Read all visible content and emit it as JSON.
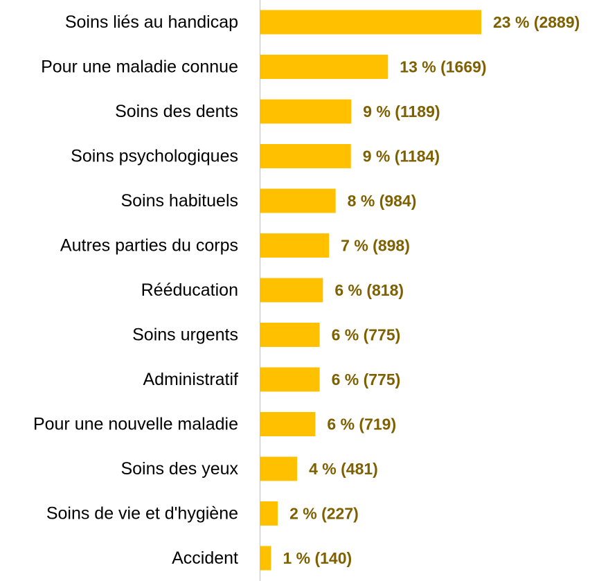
{
  "chart_data": {
    "type": "bar",
    "orientation": "horizontal",
    "categories": [
      "Soins liés au handicap",
      "Pour une maladie connue",
      "Soins des dents",
      "Soins psychologiques",
      "Soins habituels",
      "Autres parties du corps",
      "Rééducation",
      "Soins urgents",
      "Administratif",
      "Pour une nouvelle maladie",
      "Soins des yeux",
      "Soins de vie et d'hygiène",
      "Accident"
    ],
    "values": [
      2889,
      1669,
      1189,
      1184,
      984,
      898,
      818,
      775,
      775,
      719,
      481,
      227,
      140
    ],
    "data_labels": [
      "23 % (2889)",
      "13 % (1669)",
      "9 % (1189)",
      "9 % (1184)",
      "8 % (984)",
      "7 % (898)",
      "6 % (818)",
      "6 % (775)",
      "6 % (775)",
      "6 % (719)",
      "4 % (481)",
      "2 % (227)",
      "1 % (140)"
    ],
    "title": "",
    "xlabel": "",
    "ylabel": "",
    "xlim": [
      0,
      2889
    ],
    "grid": false,
    "legend": "none",
    "colors": {
      "bar": "#FFC000",
      "data_label": "#7F6000",
      "axis": "#BFBFBF",
      "category_label": "#000000"
    }
  }
}
